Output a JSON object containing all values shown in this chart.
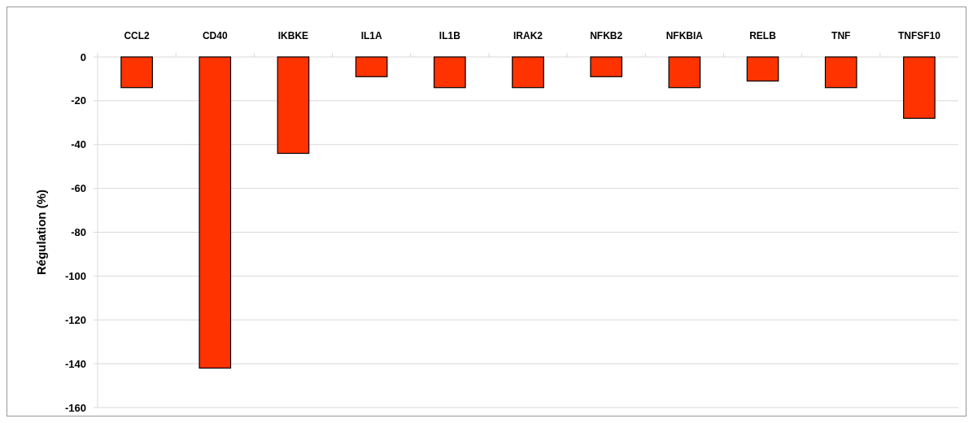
{
  "chart_data": {
    "type": "bar",
    "ylabel": "Régulation (%)",
    "categories": [
      "CCL2",
      "CD40",
      "IKBKE",
      "IL1A",
      "IL1B",
      "IRAK2",
      "NFKB2",
      "NFKBIA",
      "RELB",
      "TNF",
      "TNFSF10"
    ],
    "values": [
      -14,
      -142,
      -44,
      -9,
      -14,
      -14,
      -9,
      -14,
      -11,
      -14,
      -28
    ],
    "color": "#ff3300",
    "ylim": [
      -160,
      0
    ],
    "yticks": [
      0,
      -20,
      -40,
      -60,
      -80,
      -100,
      -120,
      -140,
      -160
    ],
    "grid": "y"
  }
}
